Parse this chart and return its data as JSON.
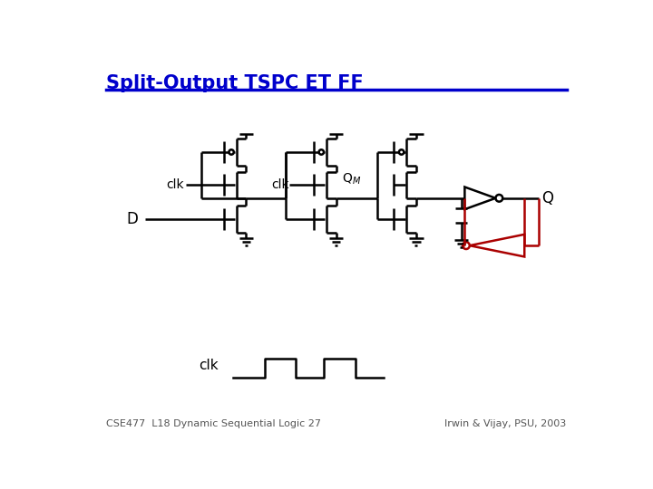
{
  "title": "Split-Output TSPC ET FF",
  "title_color": "#0000CC",
  "underline_color": "#0000CC",
  "bottom_left_text": "CSE477  L18 Dynamic Sequential Logic 27",
  "bottom_right_text": "Irwin & Vijay, PSU, 2003",
  "bg_color": "#FFFFFF",
  "line_color": "#000000",
  "red_color": "#AA0000",
  "lw": 1.8,
  "lw_thick": 2.2
}
